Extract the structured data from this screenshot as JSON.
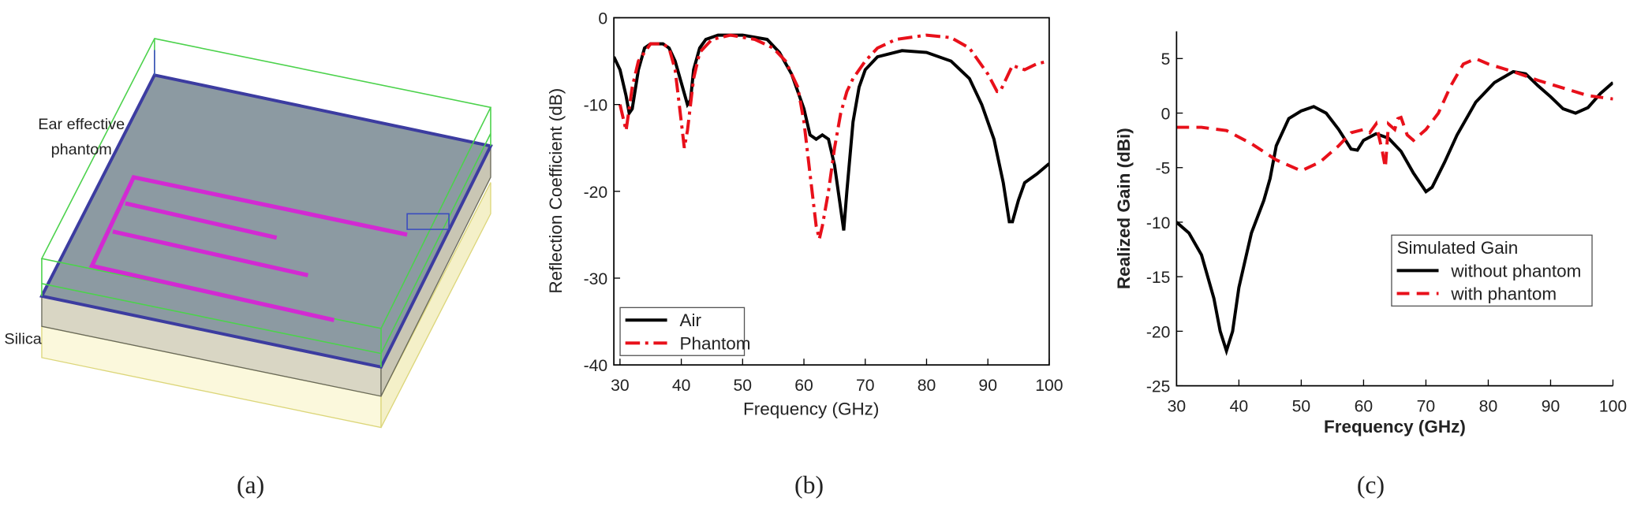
{
  "figure": {
    "panel_a_labels": [
      "Ear effective",
      "phantom",
      "Silica"
    ],
    "captions": [
      "(a)",
      "(b)",
      "(c)"
    ]
  },
  "chart_data": [
    {
      "type": "line",
      "xlabel": "Frequency (GHz)",
      "ylabel": "Reflection Coefficient (dB)",
      "xlim": [
        29,
        100
      ],
      "ylim": [
        -40,
        0
      ],
      "xticks": [
        30,
        40,
        50,
        60,
        70,
        80,
        90,
        100
      ],
      "yticks": [
        0,
        -10,
        -20,
        -30,
        -40
      ],
      "frame": "box",
      "legend": "lower left",
      "series": [
        {
          "name": "Air",
          "color": "#000000",
          "style": "solid",
          "x": [
            29,
            30,
            31,
            31.5,
            32,
            33,
            34,
            35,
            37,
            38,
            39,
            40,
            41,
            41.5,
            42,
            43,
            44,
            46,
            50,
            54,
            56,
            58,
            60,
            61,
            62,
            63,
            64,
            65,
            66,
            66.5,
            67,
            68,
            69,
            70,
            72,
            76,
            80,
            84,
            87,
            89,
            91,
            92.5,
            93.5,
            94,
            95,
            96,
            98,
            100
          ],
          "values": [
            -4.5,
            -6,
            -9,
            -11,
            -10.5,
            -6,
            -3.5,
            -3,
            -3,
            -3.5,
            -5,
            -7.5,
            -10,
            -9.5,
            -6,
            -3.5,
            -2.5,
            -2,
            -2,
            -2.5,
            -4,
            -6.5,
            -10.5,
            -13.5,
            -14,
            -13.5,
            -14,
            -17,
            -22,
            -24.5,
            -20,
            -12,
            -8,
            -6,
            -4.5,
            -3.8,
            -4,
            -5,
            -7,
            -10,
            -14,
            -19,
            -23.5,
            -23.5,
            -21,
            -19,
            -18,
            -16.8
          ]
        },
        {
          "name": "Phantom",
          "color": "#e8101a",
          "style": "dash-dot",
          "x": [
            30,
            31,
            32,
            33,
            35,
            37,
            38,
            39,
            40,
            40.5,
            41,
            42,
            43,
            45,
            48,
            52,
            55,
            57,
            59,
            60,
            61,
            62,
            62.5,
            63,
            64,
            65,
            66,
            67,
            68,
            70,
            72,
            75,
            80,
            84,
            87,
            90,
            91.5,
            92,
            93,
            94,
            96,
            98,
            100
          ],
          "values": [
            -10,
            -13,
            -8,
            -5,
            -3,
            -3,
            -3.5,
            -6,
            -12,
            -15,
            -13,
            -7,
            -4,
            -2.5,
            -2,
            -2.5,
            -3.5,
            -5,
            -8,
            -12,
            -18,
            -24,
            -25.5,
            -24,
            -20,
            -15,
            -11,
            -8.5,
            -7,
            -5,
            -3.5,
            -2.5,
            -2,
            -2.3,
            -3.5,
            -6.5,
            -8.5,
            -8.5,
            -7,
            -5.5,
            -6,
            -5.3,
            -5
          ]
        }
      ]
    },
    {
      "type": "line",
      "xlabel": "Frequency (GHz)",
      "ylabel": "Realized Gain (dBi)",
      "xlim": [
        30,
        100
      ],
      "ylim": [
        -25,
        7.5
      ],
      "xticks": [
        30,
        40,
        50,
        60,
        70,
        80,
        90,
        100
      ],
      "yticks": [
        5,
        0,
        -5,
        -10,
        -15,
        -20,
        -25
      ],
      "frame": "axes",
      "legend": "center right",
      "legend_title": "Simulated Gain",
      "series": [
        {
          "name": "without phantom",
          "color": "#000000",
          "style": "solid",
          "x": [
            30,
            32,
            34,
            36,
            37,
            38,
            39,
            40,
            42,
            44,
            45,
            46,
            48,
            50,
            52,
            54,
            56,
            58,
            59,
            60,
            62,
            64,
            66,
            68,
            70,
            71,
            73,
            75,
            78,
            81,
            84,
            86,
            88,
            90,
            92,
            94,
            96,
            98,
            100
          ],
          "values": [
            -10,
            -11,
            -13,
            -17,
            -20,
            -21.8,
            -20,
            -16,
            -11,
            -8,
            -6,
            -3,
            -0.5,
            0.2,
            0.6,
            0,
            -1.5,
            -3.3,
            -3.4,
            -2.5,
            -1.9,
            -2.3,
            -3.5,
            -5.5,
            -7.2,
            -6.8,
            -4.5,
            -2,
            1,
            2.8,
            3.8,
            3.6,
            2.5,
            1.5,
            0.4,
            0,
            0.5,
            1.8,
            2.8
          ]
        },
        {
          "name": "with phantom",
          "color": "#e8101a",
          "style": "dash",
          "x": [
            30,
            34,
            38,
            42,
            46,
            50,
            53,
            56,
            58,
            60,
            61,
            62,
            63,
            63.5,
            64,
            65,
            65.5,
            66,
            67,
            68,
            70,
            72,
            74,
            76,
            78,
            80,
            84,
            88,
            92,
            96,
            100
          ],
          "values": [
            -1.3,
            -1.3,
            -1.6,
            -2.8,
            -4.3,
            -5.3,
            -4.5,
            -3,
            -1.8,
            -1.5,
            -1.8,
            -1,
            -3.5,
            -5,
            -1,
            -1.5,
            -0.5,
            -0.4,
            -2,
            -2.5,
            -1.5,
            0,
            2.5,
            4.5,
            5,
            4.5,
            3.8,
            3,
            2.3,
            1.6,
            1.3
          ]
        }
      ]
    }
  ]
}
